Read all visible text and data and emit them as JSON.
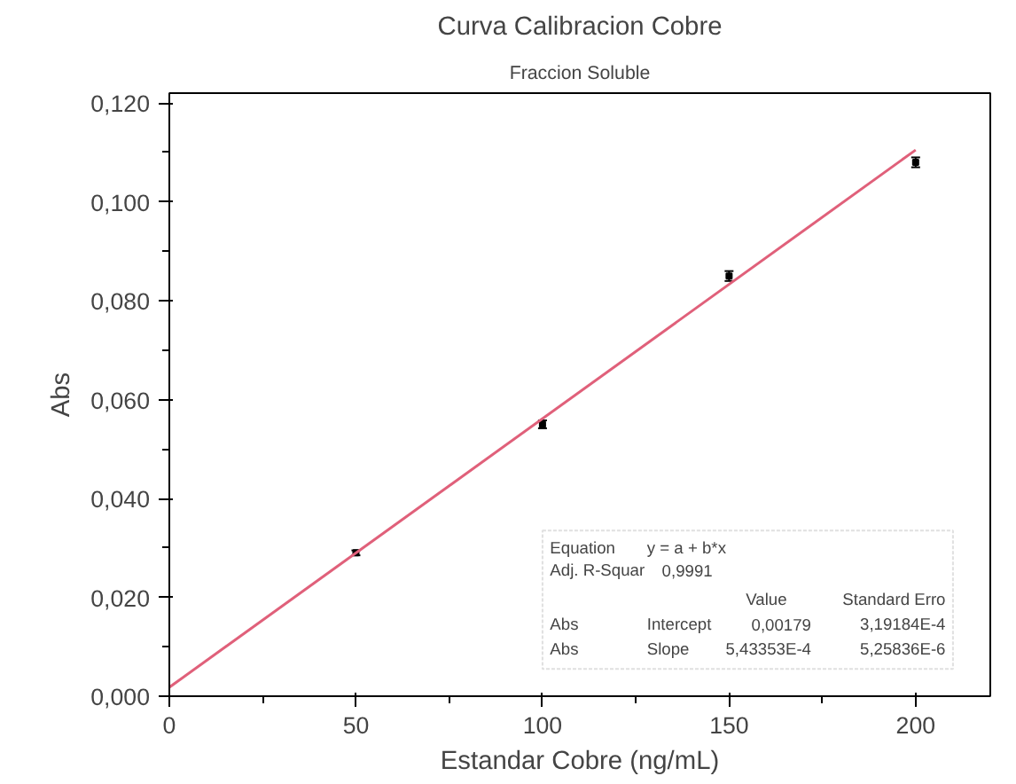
{
  "chart_data": {
    "type": "scatter",
    "title": "Curva Calibracion Cobre",
    "subtitle": "Fraccion Soluble",
    "xlabel": "Estandar Cobre (ng/mL)",
    "ylabel": "Abs",
    "xlim": [
      0,
      220
    ],
    "ylim": [
      0,
      0.122
    ],
    "xticks": [
      0,
      50,
      100,
      150,
      200
    ],
    "yticks": [
      {
        "value": 0,
        "label": "0,000"
      },
      {
        "value": 0.02,
        "label": "0,020"
      },
      {
        "value": 0.04,
        "label": "0,040"
      },
      {
        "value": 0.06,
        "label": "0,060"
      },
      {
        "value": 0.08,
        "label": "0,080"
      },
      {
        "value": 0.1,
        "label": "0,100"
      },
      {
        "value": 0.12,
        "label": "0,120"
      }
    ],
    "grid": false,
    "series": [
      {
        "marker": "square",
        "color": "#000000",
        "x": [
          50,
          100,
          150,
          200
        ],
        "values": [
          0.029,
          0.055,
          0.085,
          0.108
        ],
        "errors": [
          0.0005,
          0.0008,
          0.001,
          0.001
        ]
      },
      {
        "type": "line",
        "color": "#e0607a",
        "x": [
          0,
          200
        ],
        "values": [
          0.0018,
          0.1105
        ]
      }
    ],
    "annotations": [
      "Equation",
      "y = a + b*x",
      "Adj. R-Squar",
      "0,9991",
      "Value",
      "Standard Erro",
      "Abs",
      "Intercept",
      "0,00179",
      "3,19184E-4",
      "Abs",
      "Slope",
      "5,43353E-4",
      "5,25836E-6"
    ]
  }
}
